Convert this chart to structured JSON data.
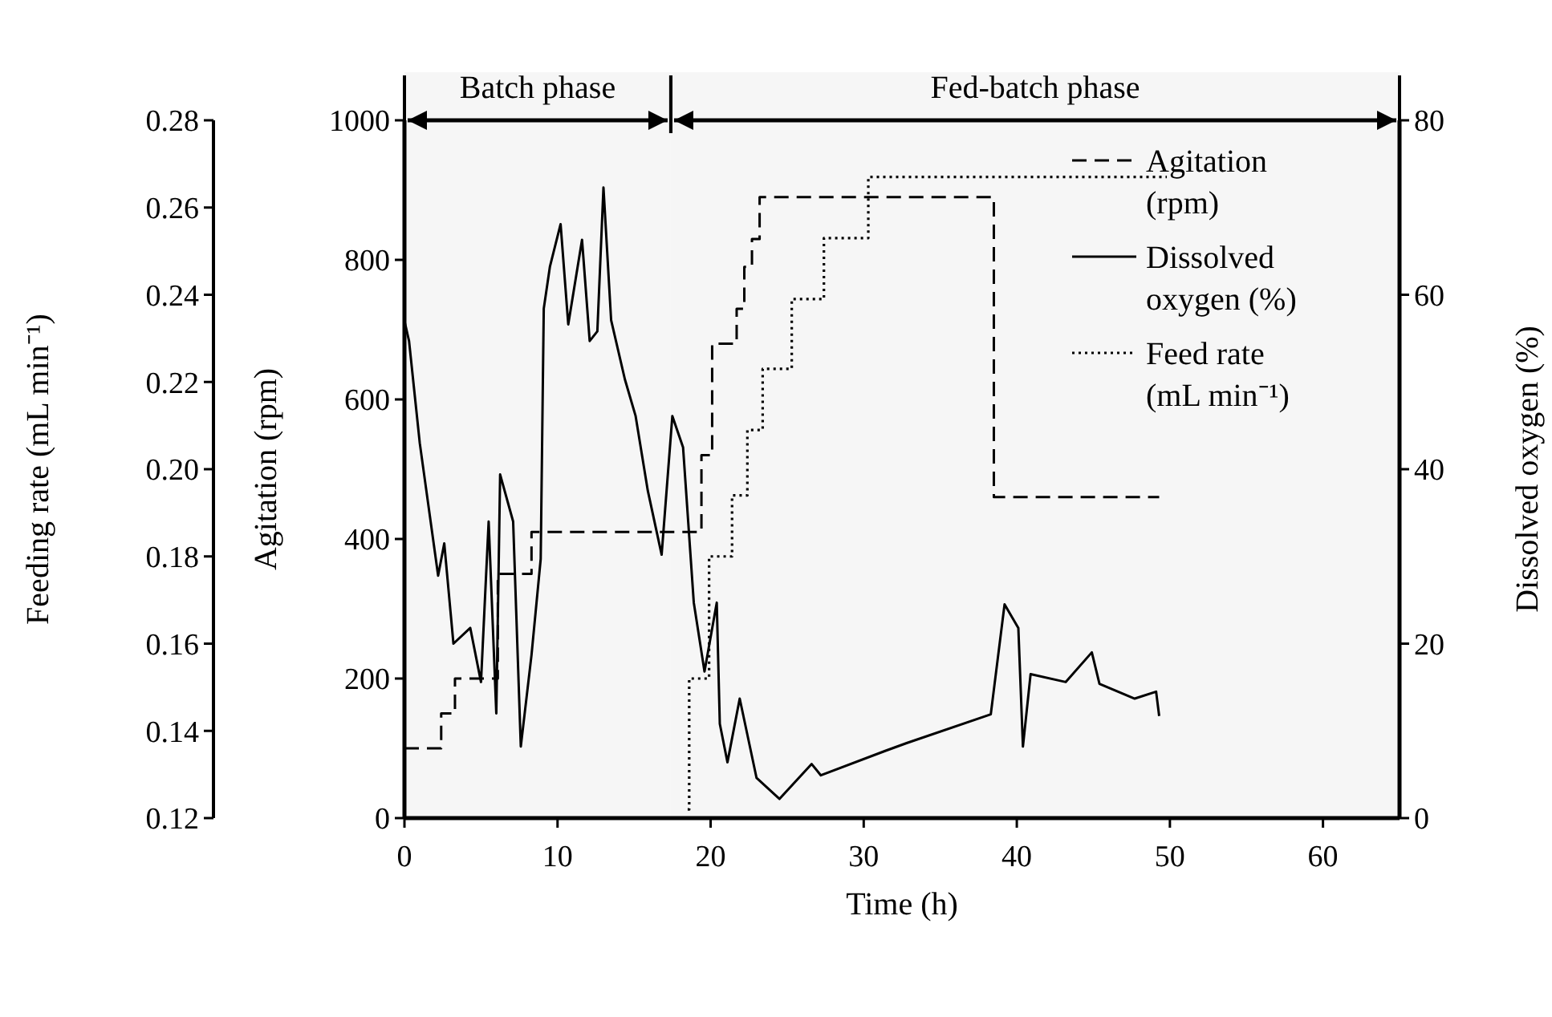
{
  "chart_data": {
    "type": "line",
    "xlabel": "Time (h)",
    "ylabel": "Agitation (rpm)",
    "y2label": "Dissolved oxygen (%)",
    "y3label": "Feeding rate (mL min⁻¹)",
    "xlim": [
      0,
      65
    ],
    "xticks": [
      0,
      10,
      20,
      30,
      40,
      50,
      60
    ],
    "ylim": [
      0,
      1000
    ],
    "yticks": [
      0,
      200,
      400,
      600,
      800,
      1000
    ],
    "y2lim": [
      0,
      80
    ],
    "y2ticks": [
      0,
      20,
      40,
      60,
      80
    ],
    "y3lim": [
      0.12,
      0.28
    ],
    "y3ticks": [
      0.12,
      0.14,
      0.16,
      0.18,
      {
        "value": 0.2,
        "label": "0.20"
      },
      0.22,
      0.24,
      0.26,
      0.28
    ],
    "legend": "top right",
    "bands": [
      {
        "axis": "x",
        "from": 0,
        "to": 17.4,
        "label": "Batch phase"
      },
      {
        "axis": "x",
        "from": 17.4,
        "to": 65,
        "label": "Fed-batch phase"
      }
    ],
    "series": [
      {
        "name": "Agitation (rpm)",
        "type": "step",
        "axis": "y",
        "line_style": "dashed",
        "color": "#000000",
        "x": [
          0,
          2.4,
          3.3,
          6.1,
          8.3,
          19.4,
          20.1,
          21.7,
          22.2,
          22.7,
          23.2,
          38.5,
          49.3
        ],
        "values": [
          100,
          150,
          200,
          350,
          410,
          520,
          680,
          730,
          790,
          830,
          890,
          460,
          460
        ]
      },
      {
        "name": "Dissolved oxygen (%)",
        "type": "line",
        "axis": "y2",
        "line_style": "solid",
        "color": "#000000",
        "x": [
          0,
          0.3,
          1.0,
          2.2,
          2.6,
          3.2,
          4.3,
          5.0,
          5.5,
          6.0,
          6.25,
          7.1,
          7.6,
          8.3,
          8.9,
          9.1,
          9.5,
          10.2,
          10.7,
          11.6,
          12.1,
          12.6,
          13.0,
          13.5,
          14.4,
          15.1,
          15.9,
          16.8,
          17.5,
          18.2,
          18.9,
          19.6,
          20.4,
          20.6,
          21.1,
          21.9,
          23.0,
          24.5,
          26.6,
          27.2,
          31.4,
          32.8,
          38.3,
          39.2,
          40.1,
          40.4,
          40.9,
          43.2,
          44.9,
          45.4,
          47.7,
          49.1,
          49.3
        ],
        "values": [
          57,
          54.7,
          43,
          27.8,
          31.5,
          20,
          21.8,
          15.6,
          34,
          12,
          39.4,
          34,
          8.2,
          18.7,
          29.7,
          58.4,
          63.2,
          68.1,
          56.6,
          66.3,
          54.7,
          55.8,
          72.3,
          57.1,
          50.3,
          46.1,
          37.5,
          30.2,
          46.1,
          42.5,
          24.7,
          16.8,
          24.7,
          10.8,
          6.4,
          13.7,
          4.6,
          2.2,
          6.2,
          4.9,
          7.7,
          8.6,
          11.9,
          24.5,
          21.8,
          8.2,
          16.5,
          15.6,
          19,
          15.4,
          13.7,
          14.5,
          11.7
        ]
      },
      {
        "name": "Feed rate (mL min⁻¹)",
        "type": "step",
        "axis": "y3",
        "line_style": "dotted",
        "color": "#000000",
        "x": [
          18.5,
          18.6,
          19.9,
          21.4,
          22.4,
          23.4,
          25.3,
          27.4,
          30.3,
          49.8
        ],
        "values": [
          0.122,
          0.152,
          0.18,
          0.194,
          0.209,
          0.223,
          0.239,
          0.253,
          0.267,
          0.267
        ]
      }
    ]
  }
}
